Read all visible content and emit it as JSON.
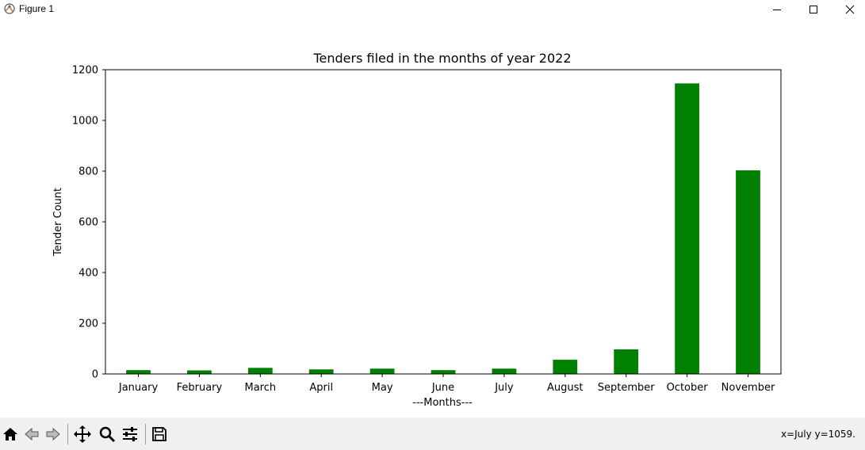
{
  "window": {
    "title": "Figure 1",
    "icons": [
      "figure-app-icon",
      "minimize-icon",
      "maximize-icon",
      "close-icon"
    ]
  },
  "toolbar": {
    "icons": [
      "home-icon",
      "back-icon",
      "forward-icon",
      "pan-icon",
      "zoom-icon",
      "configure-subplots-icon",
      "save-icon"
    ],
    "coords": "x=July y=1059."
  },
  "colors": {
    "bar": "#008000",
    "toolbar_bg": "#f0f0f0"
  },
  "chart_data": {
    "type": "bar",
    "title": "Tenders filed in the months of year 2022",
    "xlabel": "---Months---",
    "ylabel": "Tender Count",
    "categories": [
      "January",
      "February",
      "March",
      "April",
      "May",
      "June",
      "July",
      "August",
      "September",
      "October",
      "November"
    ],
    "values": [
      15,
      14,
      24,
      18,
      21,
      15,
      21,
      56,
      97,
      1146,
      803
    ],
    "ylim": [
      0,
      1200
    ],
    "yticks": [
      0,
      200,
      400,
      600,
      800,
      1000,
      1200
    ],
    "grid": false
  }
}
